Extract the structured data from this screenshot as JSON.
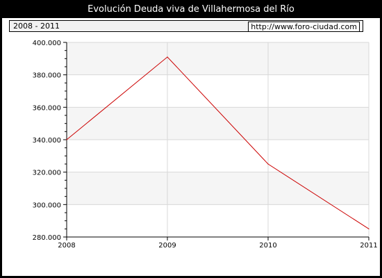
{
  "title": "Evolución Deuda viva de Villahermosa del Río",
  "period": "2008 - 2011",
  "source_url": "http://www.foro-ciudad.com",
  "colors": {
    "background": "#000000",
    "plot_band": "#f5f5f5",
    "grid": "#d8d8d8",
    "line": "#cc0000"
  },
  "chart_data": {
    "type": "line",
    "title": "Evolución Deuda viva de Villahermosa del Río",
    "xlabel": "",
    "ylabel": "",
    "x": [
      "2008",
      "2009",
      "2010",
      "2011"
    ],
    "series": [
      {
        "values": [
          340000,
          391000,
          325000,
          285000
        ]
      }
    ],
    "ylim": [
      280000,
      400000
    ],
    "yticks": [
      280000,
      300000,
      320000,
      340000,
      360000,
      380000,
      400000
    ],
    "ytick_labels": [
      "280.000",
      "300.000",
      "320.000",
      "340.000",
      "360.000",
      "380.000",
      "400.000"
    ],
    "grid": true,
    "legend": "none"
  }
}
